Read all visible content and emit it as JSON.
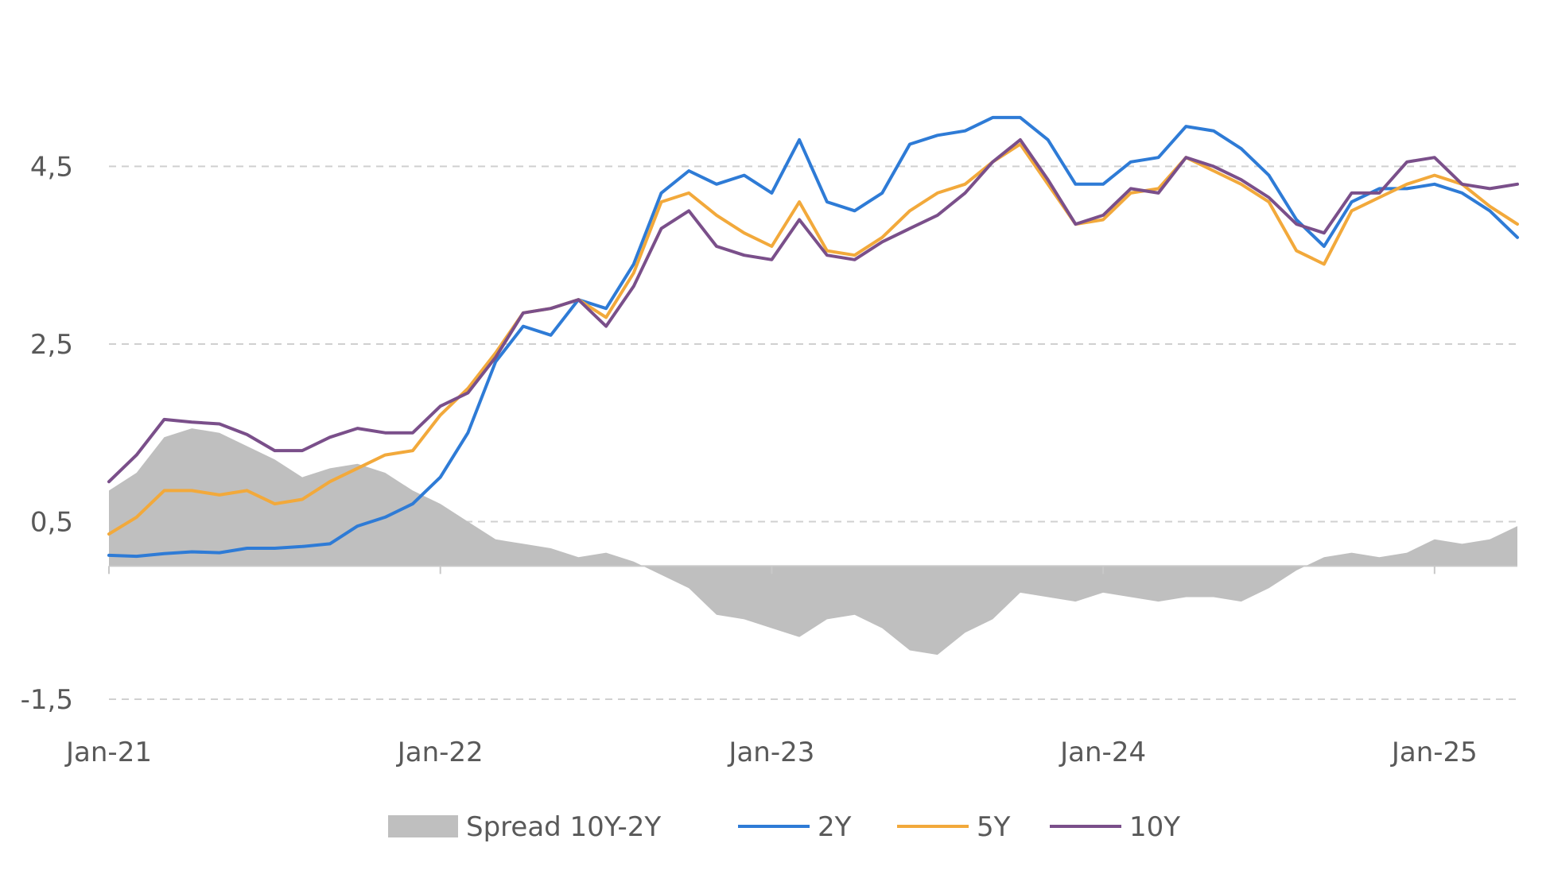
{
  "chart_data": {
    "type": "line",
    "y_ticks": [
      "4,5",
      "2,5",
      "0,5",
      "-1,5"
    ],
    "y_tick_values": [
      4.5,
      2.5,
      0.5,
      -1.5
    ],
    "ylim": [
      -1.5,
      5.3
    ],
    "x_ticks": [
      "Jan-21",
      "Jan-22",
      "Jan-23",
      "Jan-24",
      "Jan-25"
    ],
    "x_tick_values": [
      "2021-01",
      "2022-01",
      "2023-01",
      "2024-01",
      "2025-01"
    ],
    "x_range": [
      "2021-01",
      "2025-04"
    ],
    "grid": "horizontal dashed",
    "legend_position": "bottom-center",
    "legend": [
      "Spread 10Y-2Y",
      "2Y",
      "5Y",
      "10Y"
    ],
    "x": [
      "2021-01",
      "2021-02",
      "2021-03",
      "2021-04",
      "2021-05",
      "2021-06",
      "2021-07",
      "2021-08",
      "2021-09",
      "2021-10",
      "2021-11",
      "2021-12",
      "2022-01",
      "2022-02",
      "2022-03",
      "2022-04",
      "2022-05",
      "2022-06",
      "2022-07",
      "2022-08",
      "2022-09",
      "2022-10",
      "2022-11",
      "2022-12",
      "2023-01",
      "2023-02",
      "2023-03",
      "2023-04",
      "2023-05",
      "2023-06",
      "2023-07",
      "2023-08",
      "2023-09",
      "2023-10",
      "2023-11",
      "2023-12",
      "2024-01",
      "2024-02",
      "2024-03",
      "2024-04",
      "2024-05",
      "2024-06",
      "2024-07",
      "2024-08",
      "2024-09",
      "2024-10",
      "2024-11",
      "2024-12",
      "2025-01",
      "2025-02",
      "2025-03",
      "2025-04"
    ],
    "series": [
      {
        "name": "Spread 10Y-2Y",
        "type": "area",
        "color": "#bfbfbf",
        "values": [
          0.85,
          1.05,
          1.45,
          1.55,
          1.5,
          1.35,
          1.2,
          1.0,
          1.1,
          1.15,
          1.05,
          0.85,
          0.7,
          0.5,
          0.3,
          0.25,
          0.2,
          0.1,
          0.15,
          0.05,
          -0.1,
          -0.25,
          -0.55,
          -0.6,
          -0.7,
          -0.8,
          -0.6,
          -0.55,
          -0.7,
          -0.95,
          -1.0,
          -0.75,
          -0.6,
          -0.3,
          -0.35,
          -0.4,
          -0.3,
          -0.35,
          -0.4,
          -0.35,
          -0.35,
          -0.4,
          -0.25,
          -0.05,
          0.1,
          0.15,
          0.1,
          0.15,
          0.3,
          0.25,
          0.3,
          0.45
        ]
      },
      {
        "name": "2Y",
        "type": "line",
        "color": "#2e7bd6",
        "values": [
          0.12,
          0.11,
          0.14,
          0.16,
          0.15,
          0.2,
          0.2,
          0.22,
          0.25,
          0.45,
          0.55,
          0.7,
          1.0,
          1.5,
          2.3,
          2.7,
          2.6,
          3.0,
          2.9,
          3.4,
          4.2,
          4.45,
          4.3,
          4.4,
          4.2,
          4.8,
          4.1,
          4.0,
          4.2,
          4.75,
          4.85,
          4.9,
          5.05,
          5.05,
          4.8,
          4.3,
          4.3,
          4.55,
          4.6,
          4.95,
          4.9,
          4.7,
          4.4,
          3.9,
          3.6,
          4.1,
          4.25,
          4.25,
          4.3,
          4.2,
          4.0,
          3.7
        ]
      },
      {
        "name": "5Y",
        "type": "line",
        "color": "#f2a93b",
        "values": [
          0.36,
          0.55,
          0.85,
          0.85,
          0.8,
          0.85,
          0.7,
          0.75,
          0.95,
          1.1,
          1.25,
          1.3,
          1.7,
          2.0,
          2.4,
          2.85,
          2.9,
          3.0,
          2.8,
          3.3,
          4.1,
          4.2,
          3.95,
          3.75,
          3.6,
          4.1,
          3.55,
          3.5,
          3.7,
          4.0,
          4.2,
          4.3,
          4.55,
          4.75,
          4.3,
          3.85,
          3.9,
          4.2,
          4.25,
          4.6,
          4.45,
          4.3,
          4.1,
          3.55,
          3.4,
          4.0,
          4.15,
          4.3,
          4.4,
          4.3,
          4.05,
          3.85
        ]
      },
      {
        "name": "10Y",
        "type": "line",
        "color": "#7a4f8a",
        "values": [
          0.95,
          1.25,
          1.65,
          1.62,
          1.6,
          1.48,
          1.3,
          1.3,
          1.45,
          1.55,
          1.5,
          1.5,
          1.8,
          1.95,
          2.35,
          2.85,
          2.9,
          3.0,
          2.7,
          3.15,
          3.8,
          4.0,
          3.6,
          3.5,
          3.45,
          3.9,
          3.5,
          3.45,
          3.65,
          3.8,
          3.95,
          4.2,
          4.55,
          4.8,
          4.35,
          3.85,
          3.95,
          4.25,
          4.2,
          4.6,
          4.5,
          4.35,
          4.15,
          3.85,
          3.75,
          4.2,
          4.2,
          4.55,
          4.6,
          4.3,
          4.25,
          4.3
        ]
      }
    ]
  }
}
